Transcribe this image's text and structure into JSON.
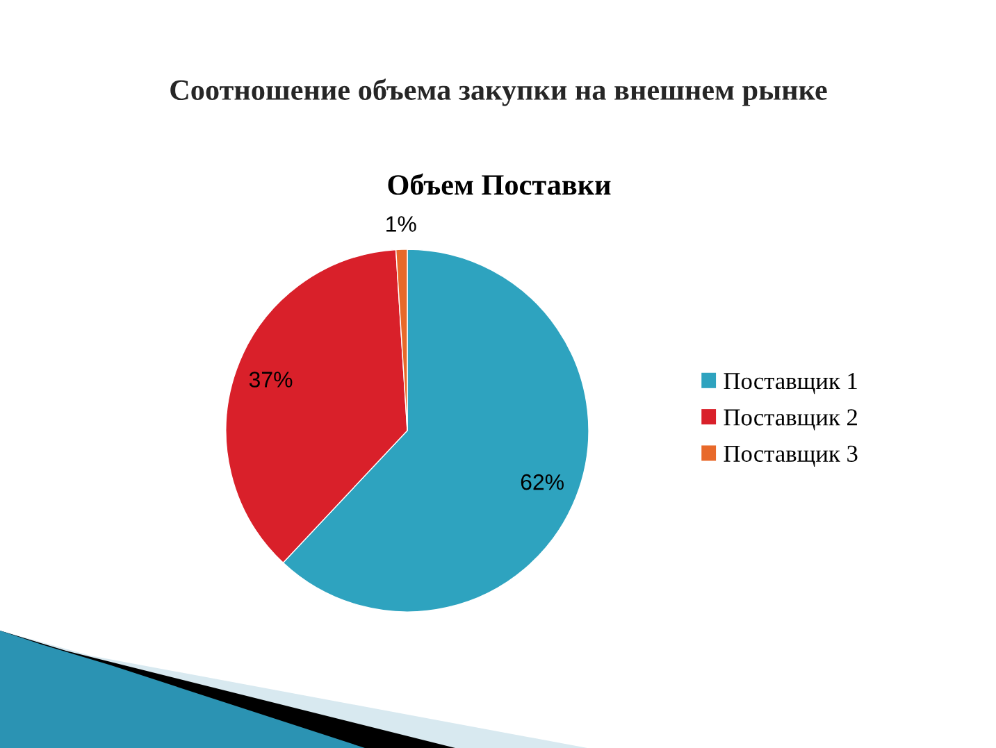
{
  "chart_data": {
    "type": "pie",
    "title": "Соотношение объема закупки на внешнем рынке",
    "subtitle": "Объем Поставки",
    "categories": [
      "Поставщик 1",
      "Поставщик 2",
      "Поставщик 3"
    ],
    "values": [
      62,
      37,
      1
    ],
    "colors": [
      "#2ea3bf",
      "#d9202a",
      "#e8692a"
    ],
    "value_labels": [
      "62%",
      "37%",
      "1%"
    ],
    "legend": "right"
  }
}
